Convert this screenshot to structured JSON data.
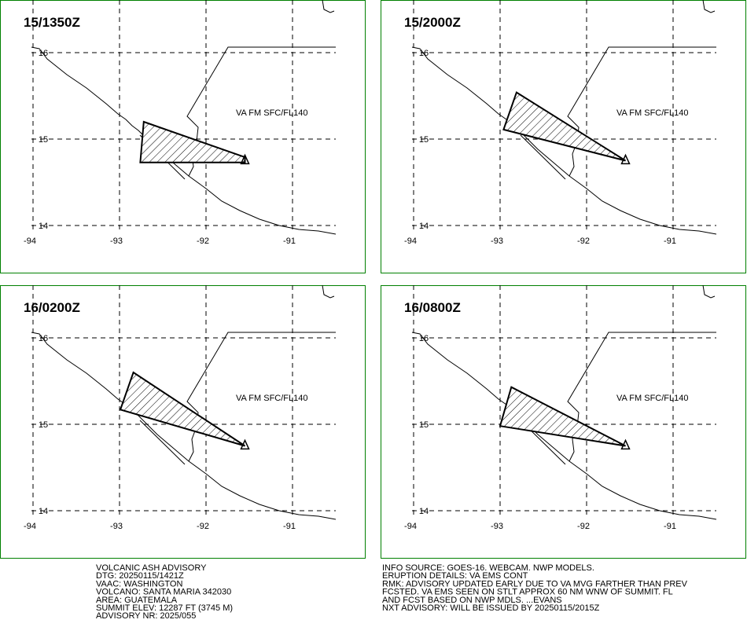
{
  "panels": [
    {
      "time": "15/1350Z",
      "label": "VA FM SFC/FL140",
      "polygon": [
        [
          -92.72,
          15.2
        ],
        [
          -91.55,
          14.79
        ],
        [
          -91.55,
          14.73
        ],
        [
          -92.76,
          14.73
        ]
      ]
    },
    {
      "time": "15/2000Z",
      "label": "VA FM SFC/FL140",
      "polygon": [
        [
          -92.81,
          15.54
        ],
        [
          -91.55,
          14.75
        ],
        [
          -92.96,
          15.11
        ]
      ]
    },
    {
      "time": "16/0200Z",
      "label": "VA FM SFC/FL140",
      "polygon": [
        [
          -92.84,
          15.6
        ],
        [
          -91.55,
          14.75
        ],
        [
          -92.99,
          15.17
        ]
      ]
    },
    {
      "time": "16/0800Z",
      "label": "VA FM SFC/FL140",
      "polygon": [
        [
          -92.87,
          15.43
        ],
        [
          -91.55,
          14.75
        ],
        [
          -93.0,
          14.98
        ]
      ]
    }
  ],
  "volcano": [
    -91.55,
    14.76
  ],
  "lon_ticks": [
    -94,
    -93,
    -92,
    -91
  ],
  "lat_ticks": [
    16,
    15,
    14
  ],
  "advisory_left": [
    "VOLCANIC ASH ADVISORY",
    "DTG: 20250115/1421Z",
    "VAAC: WASHINGTON",
    "VOLCANO: SANTA MARIA 342030",
    "AREA: GUATEMALA",
    "SUMMIT ELEV: 12287 FT (3745 M)",
    "ADVISORY NR: 2025/055"
  ],
  "advisory_right": [
    "INFO SOURCE: GOES-16. WEBCAM. NWP MODELS.",
    "ERUPTION DETAILS: VA EMS CONT",
    "RMK: ADVISORY UPDATED EARLY DUE TO VA MVG FARTHER THAN PREV",
    "FCSTED. VA EMS SEEN ON STLT APPROX 60 NM WNW OF SUMMIT. FL",
    "AND FCST BASED ON NWP MDLS. ...EVANS",
    "NXT ADVISORY: WILL BE ISSUED BY 20250115/2015Z"
  ]
}
